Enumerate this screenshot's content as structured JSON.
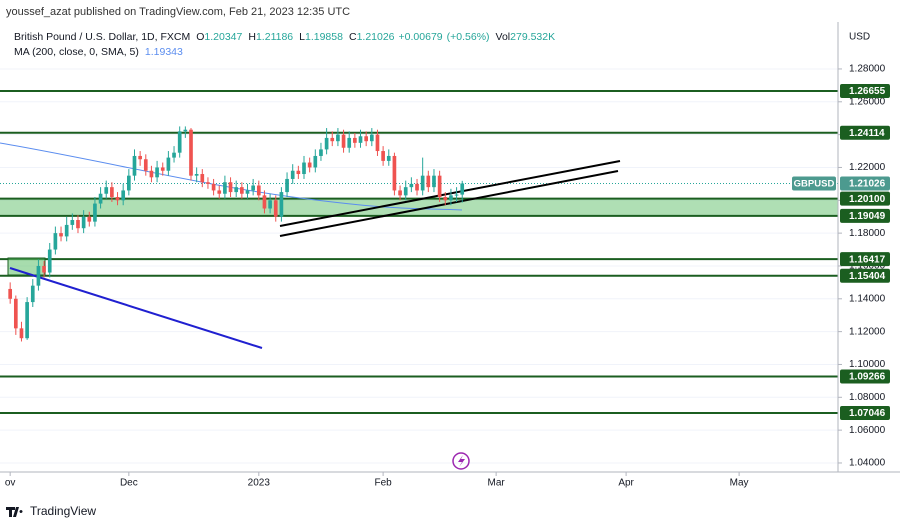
{
  "header": {
    "publisher": "youssef_azat published on TradingView.com, Feb 21, 2023 12:35 UTC"
  },
  "footer": {
    "brand": "TradingView"
  },
  "chart_data": {
    "type": "candlestick",
    "symbol_title": "British Pound / U.S. Dollar, 1D, FXCM",
    "ohlc_keys": [
      "O",
      "H",
      "L",
      "C"
    ],
    "change": "+0.00679",
    "change_pct": "(+0.56%)",
    "volume_key": "Vol",
    "volume": "279.532K",
    "ma_title": "MA (200, close, 0, SMA, 5)",
    "ma_value": "1.19343",
    "ma_color": "#5b8def",
    "currency": "USD",
    "up_color": "#26a69a",
    "down_color": "#ef5350",
    "level_color": "#1b5e20",
    "zone_color": "#5fbf6a",
    "xlim": [
      -1.8,
      146.5
    ],
    "xticks": [
      {
        "value": 0,
        "label": "ov"
      },
      {
        "value": 21,
        "label": "Dec"
      },
      {
        "value": 44,
        "label": "2023"
      },
      {
        "value": 66,
        "label": "Feb"
      },
      {
        "value": 86,
        "label": "Mar"
      },
      {
        "value": 109,
        "label": "Apr"
      },
      {
        "value": 129,
        "label": "May"
      }
    ],
    "ylim": [
      1.0345,
      1.3086
    ],
    "yticks": [
      {
        "value": 1.28,
        "label": "1.28000"
      },
      {
        "value": 1.26,
        "label": "1.26000"
      },
      {
        "value": 1.24,
        "label": "1.24000"
      },
      {
        "value": 1.22,
        "label": "1.22000"
      },
      {
        "value": 1.2,
        "label": "1.20000"
      },
      {
        "value": 1.18,
        "label": "1.18000"
      },
      {
        "value": 1.16,
        "label": "1.16000"
      },
      {
        "value": 1.14,
        "label": "1.14000"
      },
      {
        "value": 1.12,
        "label": "1.12000"
      },
      {
        "value": 1.1,
        "label": "1.10000"
      },
      {
        "value": 1.08,
        "label": "1.08000"
      },
      {
        "value": 1.06,
        "label": "1.06000"
      },
      {
        "value": 1.04,
        "label": "1.04000"
      }
    ],
    "levels": [
      1.26655,
      1.24114,
      1.16417,
      1.15404,
      1.09266,
      1.07046
    ],
    "zone": [
      {
        "value": 1.201,
        "label": "1.20100"
      },
      1.19049
    ],
    "last": {
      "name": "GBPUSD",
      "value": 1.21026
    },
    "categories": [
      null,
      null,
      null,
      null,
      null,
      null,
      null,
      null,
      null,
      null,
      null,
      null,
      null,
      null,
      null,
      null,
      null,
      null,
      null,
      null,
      null,
      null,
      null,
      null,
      null,
      null,
      null,
      null,
      null,
      null,
      null,
      null,
      null,
      null,
      null,
      null,
      null,
      null,
      null,
      null,
      null,
      null,
      null,
      null,
      null,
      null,
      null,
      null,
      null,
      null,
      null,
      null,
      null,
      null,
      null,
      null,
      null,
      null,
      null,
      null,
      null,
      null,
      null,
      null,
      null,
      null,
      null,
      null,
      null,
      null,
      null,
      null,
      null,
      null,
      null,
      null,
      null,
      null,
      null,
      null,
      null
    ],
    "candles": [
      [
        1.146,
        1.15,
        1.137,
        1.14
      ],
      [
        1.14,
        1.142,
        1.118,
        1.122
      ],
      [
        1.122,
        1.126,
        1.114,
        1.116
      ],
      [
        1.116,
        1.141,
        1.115,
        1.138
      ],
      [
        1.138,
        1.152,
        1.135,
        1.148
      ],
      [
        1.148,
        1.164,
        1.145,
        1.16
      ],
      [
        1.16,
        1.163,
        1.153,
        1.156
      ],
      [
        1.156,
        1.174,
        1.153,
        1.17
      ],
      [
        1.17,
        1.184,
        1.167,
        1.18
      ],
      [
        1.18,
        1.184,
        1.175,
        1.178
      ],
      [
        1.178,
        1.19,
        1.175,
        1.185
      ],
      [
        1.185,
        1.192,
        1.182,
        1.188
      ],
      [
        1.188,
        1.191,
        1.18,
        1.183
      ],
      [
        1.183,
        1.194,
        1.18,
        1.19
      ],
      [
        1.19,
        1.193,
        1.184,
        1.187
      ],
      [
        1.187,
        1.202,
        1.184,
        1.198
      ],
      [
        1.198,
        1.208,
        1.195,
        1.204
      ],
      [
        1.204,
        1.212,
        1.201,
        1.208
      ],
      [
        1.208,
        1.211,
        1.199,
        1.202
      ],
      [
        1.202,
        1.205,
        1.197,
        1.2
      ],
      [
        1.2,
        1.21,
        1.197,
        1.206
      ],
      [
        1.206,
        1.219,
        1.203,
        1.215
      ],
      [
        1.215,
        1.231,
        1.212,
        1.227
      ],
      [
        1.227,
        1.23,
        1.221,
        1.225
      ],
      [
        1.225,
        1.228,
        1.215,
        1.218
      ],
      [
        1.218,
        1.221,
        1.211,
        1.214
      ],
      [
        1.214,
        1.224,
        1.211,
        1.22
      ],
      [
        1.22,
        1.223,
        1.215,
        1.218
      ],
      [
        1.218,
        1.23,
        1.215,
        1.226
      ],
      [
        1.226,
        1.233,
        1.223,
        1.229
      ],
      [
        1.229,
        1.245,
        1.226,
        1.242
      ],
      [
        1.242,
        1.245,
        1.238,
        1.243
      ],
      [
        1.243,
        1.244,
        1.212,
        1.215
      ],
      [
        1.215,
        1.22,
        1.211,
        1.216
      ],
      [
        1.216,
        1.219,
        1.208,
        1.211
      ],
      [
        1.211,
        1.214,
        1.207,
        1.21
      ],
      [
        1.21,
        1.213,
        1.203,
        1.206
      ],
      [
        1.206,
        1.209,
        1.201,
        1.204
      ],
      [
        1.204,
        1.215,
        1.201,
        1.211
      ],
      [
        1.211,
        1.214,
        1.202,
        1.205
      ],
      [
        1.205,
        1.212,
        1.202,
        1.208
      ],
      [
        1.208,
        1.211,
        1.201,
        1.204
      ],
      [
        1.204,
        1.21,
        1.201,
        1.206
      ],
      [
        1.206,
        1.213,
        1.203,
        1.209
      ],
      [
        1.209,
        1.212,
        1.2,
        1.203
      ],
      [
        1.203,
        1.206,
        1.192,
        1.195
      ],
      [
        1.195,
        1.204,
        1.192,
        1.2
      ],
      [
        1.2,
        1.203,
        1.187,
        1.19
      ],
      [
        1.19,
        1.208,
        1.187,
        1.205
      ],
      [
        1.205,
        1.217,
        1.202,
        1.213
      ],
      [
        1.213,
        1.222,
        1.21,
        1.218
      ],
      [
        1.218,
        1.221,
        1.213,
        1.216
      ],
      [
        1.216,
        1.227,
        1.213,
        1.223
      ],
      [
        1.223,
        1.226,
        1.217,
        1.22
      ],
      [
        1.22,
        1.231,
        1.217,
        1.227
      ],
      [
        1.227,
        1.235,
        1.224,
        1.231
      ],
      [
        1.231,
        1.244,
        1.228,
        1.238
      ],
      [
        1.238,
        1.242,
        1.233,
        1.236
      ],
      [
        1.236,
        1.244,
        1.233,
        1.24
      ],
      [
        1.24,
        1.243,
        1.229,
        1.232
      ],
      [
        1.232,
        1.242,
        1.229,
        1.238
      ],
      [
        1.238,
        1.241,
        1.232,
        1.235
      ],
      [
        1.235,
        1.243,
        1.232,
        1.239
      ],
      [
        1.239,
        1.242,
        1.233,
        1.236
      ],
      [
        1.236,
        1.244,
        1.233,
        1.24
      ],
      [
        1.24,
        1.243,
        1.227,
        1.23
      ],
      [
        1.23,
        1.233,
        1.221,
        1.224
      ],
      [
        1.224,
        1.231,
        1.221,
        1.227
      ],
      [
        1.227,
        1.229,
        1.203,
        1.206
      ],
      [
        1.206,
        1.209,
        1.2,
        1.203
      ],
      [
        1.203,
        1.212,
        1.2,
        1.208
      ],
      [
        1.208,
        1.214,
        1.205,
        1.21
      ],
      [
        1.21,
        1.213,
        1.203,
        1.206
      ],
      [
        1.206,
        1.226,
        1.203,
        1.215
      ],
      [
        1.215,
        1.218,
        1.205,
        1.208
      ],
      [
        1.208,
        1.219,
        1.205,
        1.215
      ],
      [
        1.215,
        1.218,
        1.199,
        1.202
      ],
      [
        1.202,
        1.205,
        1.197,
        1.2
      ],
      [
        1.2,
        1.207,
        1.197,
        1.203
      ],
      [
        1.203,
        1.208,
        1.199,
        1.2035
      ],
      [
        1.20347,
        1.21186,
        1.19858,
        1.21026
      ]
    ]
  }
}
